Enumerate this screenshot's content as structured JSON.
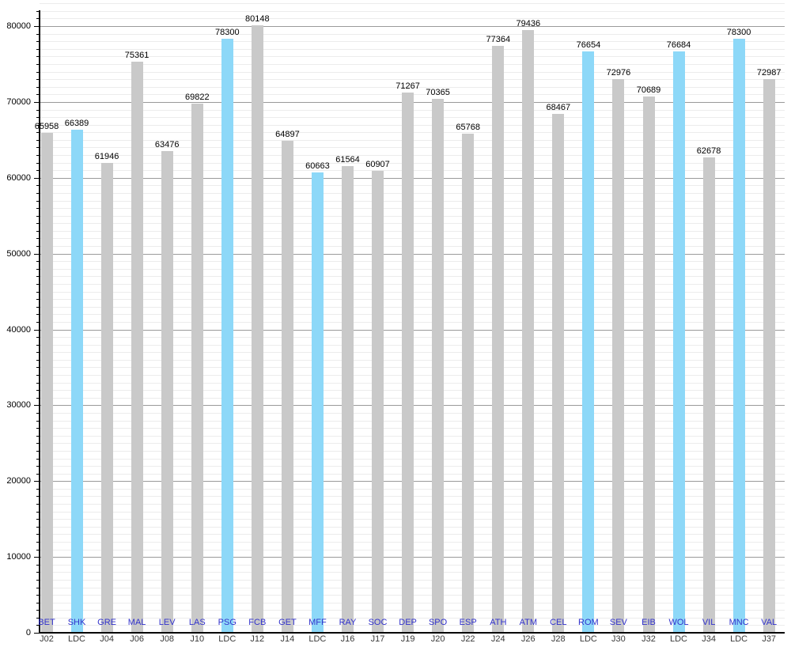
{
  "chart_data": {
    "type": "bar",
    "title": "",
    "xlabel": "",
    "ylabel": "",
    "ylim": [
      0,
      80000
    ],
    "y_ticks": [
      0,
      10000,
      20000,
      30000,
      40000,
      50000,
      60000,
      70000,
      80000
    ],
    "y_minor_step": 1000,
    "grid": "horizontal major and minor gridlines",
    "legend": "none",
    "value_labels_shown": true,
    "highlight_rule": "bars whose match label is LDC are cyan, others gray",
    "bars": [
      {
        "team": "BET",
        "match": "J02",
        "value": 65958,
        "highlighted": false
      },
      {
        "team": "SHK",
        "match": "LDC",
        "value": 66389,
        "highlighted": true
      },
      {
        "team": "GRE",
        "match": "J04",
        "value": 61946,
        "highlighted": false
      },
      {
        "team": "MAL",
        "match": "J06",
        "value": 75361,
        "highlighted": false
      },
      {
        "team": "LEV",
        "match": "J08",
        "value": 63476,
        "highlighted": false
      },
      {
        "team": "LAS",
        "match": "J10",
        "value": 69822,
        "highlighted": false
      },
      {
        "team": "PSG",
        "match": "LDC",
        "value": 78300,
        "highlighted": true
      },
      {
        "team": "FCB",
        "match": "J12",
        "value": 80148,
        "highlighted": false
      },
      {
        "team": "GET",
        "match": "J14",
        "value": 64897,
        "highlighted": false
      },
      {
        "team": "MFF",
        "match": "LDC",
        "value": 60663,
        "highlighted": true
      },
      {
        "team": "RAY",
        "match": "J16",
        "value": 61564,
        "highlighted": false
      },
      {
        "team": "SOC",
        "match": "J17",
        "value": 60907,
        "highlighted": false
      },
      {
        "team": "DEP",
        "match": "J19",
        "value": 71267,
        "highlighted": false
      },
      {
        "team": "SPO",
        "match": "J20",
        "value": 70365,
        "highlighted": false
      },
      {
        "team": "ESP",
        "match": "J22",
        "value": 65768,
        "highlighted": false
      },
      {
        "team": "ATH",
        "match": "J24",
        "value": 77364,
        "highlighted": false
      },
      {
        "team": "ATM",
        "match": "J26",
        "value": 79436,
        "highlighted": false
      },
      {
        "team": "CEL",
        "match": "J28",
        "value": 68467,
        "highlighted": false
      },
      {
        "team": "ROM",
        "match": "LDC",
        "value": 76654,
        "highlighted": true
      },
      {
        "team": "SEV",
        "match": "J30",
        "value": 72976,
        "highlighted": false
      },
      {
        "team": "EIB",
        "match": "J32",
        "value": 70689,
        "highlighted": false
      },
      {
        "team": "WOL",
        "match": "LDC",
        "value": 76684,
        "highlighted": true
      },
      {
        "team": "VIL",
        "match": "J34",
        "value": 62678,
        "highlighted": false
      },
      {
        "team": "MNC",
        "match": "LDC",
        "value": 78300,
        "highlighted": true
      },
      {
        "team": "VAL",
        "match": "J37",
        "value": 72987,
        "highlighted": false
      }
    ],
    "colors": {
      "bar_default": "#c9c9c9",
      "bar_highlight": "#8dd8f8",
      "grid_major": "#9a9a9a",
      "grid_minor": "#ececec",
      "axis": "#000000",
      "value_label": "#000000",
      "ytick_label": "#000000",
      "team_label": "#3232cc",
      "match_label": "#3a3a3a"
    }
  }
}
